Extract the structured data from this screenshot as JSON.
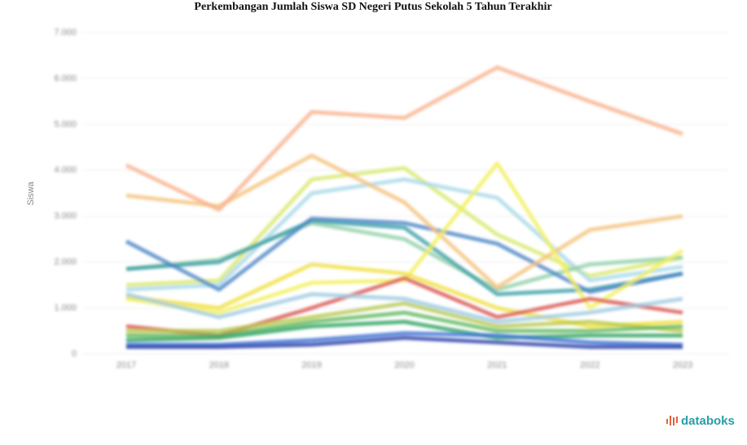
{
  "chart_data": {
    "type": "line",
    "title": "Perkembangan Jumlah Siswa SD Negeri Putus Sekolah 5 Tahun Terakhir",
    "y_label": "Siswa",
    "source": "databoks",
    "categories": [
      "2017",
      "2018",
      "2019",
      "2020",
      "2021",
      "2022",
      "2023"
    ],
    "ylim": [
      0,
      7000
    ],
    "yticks": [
      0,
      {
        "value": 1000,
        "label": "1.000"
      },
      {
        "value": 2000,
        "label": "2.000"
      },
      {
        "value": 3000,
        "label": "3.000"
      },
      {
        "value": 4000,
        "label": "4.000"
      },
      {
        "value": 5000,
        "label": "5.000"
      },
      {
        "value": 6000,
        "label": "6.000"
      },
      {
        "value": 7000,
        "label": "7.000"
      }
    ],
    "grid": true,
    "series": [
      {
        "color": "#d8e86a",
        "values": [
          1500,
          1600,
          3800,
          4050,
          2600,
          1700,
          2100
        ]
      },
      {
        "color": "#a8d8e8",
        "values": [
          1400,
          1500,
          3500,
          3800,
          3400,
          1600,
          1900
        ]
      },
      {
        "color": "#8fd0a8",
        "values": [
          1850,
          2050,
          2850,
          2500,
          1400,
          1950,
          2100
        ]
      },
      {
        "color": "#3a9fa8",
        "values": [
          1850,
          2000,
          2900,
          2750,
          1300,
          1400,
          1750
        ]
      },
      {
        "color": "#4a86c5",
        "values": [
          2450,
          1400,
          2950,
          2850,
          2400,
          1350,
          1750
        ]
      },
      {
        "color": "#f5c27a",
        "values": [
          3450,
          3220,
          4320,
          3300,
          1450,
          2700,
          3000
        ]
      },
      {
        "color": "#f2f05a",
        "values": [
          1200,
          900,
          1550,
          1600,
          4150,
          1000,
          2250
        ]
      },
      {
        "color": "#f0e040",
        "values": [
          1250,
          1000,
          1950,
          1750,
          1000,
          600,
          700
        ]
      },
      {
        "color": "#d9534f",
        "values": [
          600,
          400,
          1000,
          1650,
          800,
          1200,
          900
        ]
      },
      {
        "color": "#9ecae1",
        "values": [
          1300,
          800,
          1300,
          1200,
          700,
          900,
          1200
        ]
      },
      {
        "color": "#b5c94a",
        "values": [
          500,
          500,
          800,
          1100,
          600,
          700,
          500
        ]
      },
      {
        "color": "#5cb85c",
        "values": [
          400,
          400,
          700,
          900,
          500,
          500,
          600
        ]
      },
      {
        "color": "#2ca25f",
        "values": [
          300,
          350,
          600,
          700,
          350,
          400,
          400
        ]
      },
      {
        "color": "#3b6fd4",
        "values": [
          200,
          200,
          300,
          450,
          400,
          250,
          200
        ]
      },
      {
        "color": "#2b3fa8",
        "values": [
          150,
          150,
          200,
          350,
          250,
          150,
          150
        ]
      },
      {
        "color": "#f9b28c",
        "values": [
          4110,
          3140,
          5270,
          5140,
          6240,
          5500,
          4790
        ]
      }
    ]
  }
}
